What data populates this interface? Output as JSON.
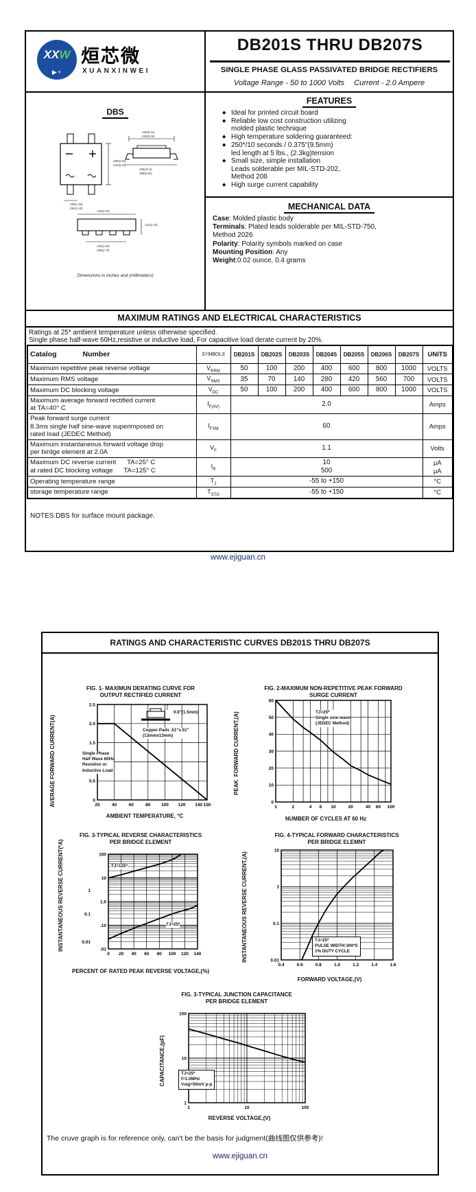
{
  "colors": {
    "brand_blue": "#1d4da1",
    "brand_green": "#58c75b",
    "footer_link": "#1b2a6b",
    "ink": "#000000"
  },
  "page1": {
    "logo": {
      "mark1": "XX",
      "mark2": "W",
      "diode": "▶+",
      "cn": "烜芯微",
      "en": "XUANXINWEI"
    },
    "title": "DB201S THRU DB207S",
    "subtitle": "SINGLE PHASE GLASS PASSIVATED BRIDGE RECTIFIERS",
    "voltage_range": "Voltage Range - 50 to 1000 Volts",
    "current": "Current - 2.0 Ampere",
    "package_label": "DBS",
    "dims_note": "Dimensions in inches and (millimeters)",
    "package_dims": [
      ".256(6.50)",
      ".244(6.20)",
      ".059(1.50)",
      ".051(1.30)",
      ".335(8.51)",
      ".325(8.26)",
      ".408(10.4)",
      ".386(9.80)",
      ".130(3.30)",
      ".122(3.10)",
      ".193(4.90)",
      ".185(4.70)"
    ],
    "features": {
      "title": "FEATURES",
      "bullet": "◆",
      "items": [
        "Ideal for printed circuit board",
        "Reliable low cost construction utilizing\nmolded plastic technique",
        "High temperature soldering guaranteed:",
        "250*/10 seconds / 0.375\"(9.5mm)\nled length at 5 lbs., (2.3kg)tension",
        "Small size, simple installation\nLeads solderable per MIL-STD-202,\nMethod 208",
        "High surge current capability"
      ]
    },
    "mech": {
      "title": "MECHANICAL DATA",
      "lines": [
        {
          "k": "Case",
          "v": ": Molded plastic body"
        },
        {
          "k": "Terminals",
          "v": ": Plated leads solderable per MIL-STD-750,\n Method 2026"
        },
        {
          "k": "Polarity",
          "v": ": Polarity symbols marked on case"
        },
        {
          "k": "Mounting Position",
          "v": ": Any"
        },
        {
          "k": "Weight",
          "v": ":0.02 ounce, 0.4 grams"
        }
      ]
    },
    "ratings": {
      "banner": "MAXIMUM RATINGS AND ELECTRICAL CHARACTERISTICS",
      "note1": "Ratings at 25* ambient temperature unless otherwise specified.",
      "note2": "Single phase half-wave 60Hz,resistive or inductive load, For capacitive load derate current by 20%.",
      "table": {
        "catalog_label": "Catalog",
        "number_label": "Number",
        "symbols_label": "SYMBOLS",
        "devices": [
          "DB201S",
          "DB202S",
          "DB203S",
          "DB204S",
          "DB205S",
          "DB206S",
          "DB207S"
        ],
        "units_label": "UNITS",
        "rows": [
          {
            "param": "Maximum repetitive peak reverse voltage",
            "sym": [
              "V",
              "RRM"
            ],
            "values": [
              "50",
              "100",
              "200",
              "400",
              "600",
              "800",
              "1000"
            ],
            "unit": "VOLTS"
          },
          {
            "param": "Maximum RMS voltage",
            "sym": [
              "V",
              "RMS"
            ],
            "values": [
              "35",
              "70",
              "140",
              "280",
              "420",
              "560",
              "700"
            ],
            "unit": "VOLTS"
          },
          {
            "param": "Maximum DC blocking voltage",
            "sym": [
              "V",
              "DC"
            ],
            "values": [
              "50",
              "100",
              "200",
              "400",
              "600",
              "800",
              "1000"
            ],
            "unit": "VOLTS"
          },
          {
            "param": "Maximum average forward rectified current\nat TA=40° C",
            "sym": [
              "I",
              "F(AV)"
            ],
            "span": "2.0",
            "unit": "Amps"
          },
          {
            "param": "Peak forward surge current\n8.3ms single half sine-wave superimposed on\nrated load (JEDEC Method)",
            "sym": [
              "I",
              "FSM"
            ],
            "span": "60",
            "unit": "Amps"
          },
          {
            "param": "Maximum instantaneous forward voltage drop\nper birdge element at 2.0A",
            "sym": [
              "V",
              "F"
            ],
            "span": "1.1",
            "unit": "Volts"
          },
          {
            "param": "Maximum DC reverse current      TA=25° C\nat rated DC blocking voltage      TA=125° C",
            "sym": [
              "I",
              "R"
            ],
            "stack": [
              "10",
              "500"
            ],
            "unit_stack": [
              "μA",
              "μA"
            ]
          },
          {
            "param": "Operating temperature range",
            "sym": [
              "T",
              "J"
            ],
            "span": "-55 to +150",
            "unit": "°C"
          },
          {
            "param": "storage temperature range",
            "sym": [
              "T",
              "STG"
            ],
            "span": "-55 to +150",
            "unit": "°C"
          }
        ]
      },
      "notes": "NOTES:DBS for surface mount package."
    },
    "footer": "www.ejiguan.cn"
  },
  "page2": {
    "banner": "RATINGS AND CHARACTERISTIC CURVES DB201S THRU DB207S",
    "reference_note": "The cruve graph is for reference only, can't be the basis for judgment(曲线图仅供参考)!",
    "footer": "www.ejiguan.cn"
  },
  "chart_data": [
    {
      "type": "line",
      "title": "FIG. 1- MAXIMUN DERATING CURVE FOR\nOUTPUT RECTIFIED CURRENT",
      "xlabel": "AMBIENT TEMPERATURE, °C",
      "ylabel": "AVERAGE FORWARD CURRENT(A)",
      "x": {
        "scale": "linear",
        "min": 20,
        "max": 150,
        "ticks": [
          [
            20,
            "20"
          ],
          [
            40,
            "40"
          ],
          [
            60,
            "60"
          ],
          [
            80,
            "80"
          ],
          [
            100,
            "100"
          ],
          [
            120,
            "120"
          ],
          [
            140,
            "140"
          ],
          [
            150,
            "150"
          ]
        ],
        "grid": [
          40,
          60,
          80,
          100,
          120,
          140
        ]
      },
      "y": {
        "scale": "linear",
        "min": 0,
        "max": 2.5,
        "ticks": [
          [
            0,
            "0"
          ],
          [
            0.5,
            "0.5"
          ],
          [
            1,
            "1.0"
          ],
          [
            1.5,
            "1.5"
          ],
          [
            2,
            "2.0"
          ],
          [
            2.5,
            "2.5"
          ]
        ],
        "grid": [
          0.5,
          1,
          1.5,
          2
        ]
      },
      "series": [
        {
          "name": "derating-curve",
          "points": [
            [
              20,
              2
            ],
            [
              40,
              2
            ],
            [
              150,
              0
            ]
          ]
        }
      ],
      "annotations": [
        {
          "text": "0.6\"(1.5mm)"
        },
        {
          "text": "Copper Pads .51\"x.51\"\n(13mmx13mm)"
        },
        {
          "text": "Single Phase\nHalf Wave 60Hz\nResistive or\nInductive Load"
        }
      ]
    },
    {
      "type": "line",
      "title": "FIG. 2-MAXIMUM NON-REPETITIVE PEAK FORWARD\nSURGE CURRENT",
      "xlabel": "NUMBER OF CYCLES AT 60 Hz",
      "ylabel": "PEAK  FORWARD CURRENT,(A)",
      "x": {
        "scale": "log",
        "min": 1,
        "max": 100,
        "ticks": [
          [
            1,
            "1"
          ],
          [
            2,
            "2"
          ],
          [
            4,
            "4"
          ],
          [
            6,
            "6"
          ],
          [
            10,
            "10"
          ],
          [
            20,
            "20"
          ],
          [
            40,
            "40"
          ],
          [
            60,
            "60"
          ],
          [
            100,
            "100"
          ]
        ],
        "grid": [
          2,
          3,
          4,
          6,
          8,
          10,
          20,
          30,
          40,
          60,
          80
        ]
      },
      "y": {
        "scale": "linear",
        "min": 0,
        "max": 60,
        "ticks": [
          [
            0,
            "0"
          ],
          [
            10,
            "10"
          ],
          [
            20,
            "20"
          ],
          [
            30,
            "30"
          ],
          [
            40,
            "40"
          ],
          [
            50,
            "50"
          ],
          [
            60,
            "60"
          ]
        ],
        "grid": [
          10,
          20,
          30,
          40,
          50
        ]
      },
      "series": [
        {
          "name": "surge-current",
          "points": [
            [
              1,
              60
            ],
            [
              1.5,
              53.5
            ],
            [
              2,
              49
            ],
            [
              3,
              44
            ],
            [
              4,
              41
            ],
            [
              6,
              36.5
            ],
            [
              8,
              32.5
            ],
            [
              10,
              29.5
            ],
            [
              15,
              25
            ],
            [
              20,
              21.5
            ],
            [
              30,
              18.5
            ],
            [
              40,
              16
            ],
            [
              60,
              13.5
            ],
            [
              80,
              11.8
            ],
            [
              100,
              10.5
            ]
          ]
        }
      ],
      "annotations": [
        {
          "text": "TJ=25*\nSingle sine-wave\n(JEDEC Method)"
        }
      ]
    },
    {
      "type": "line",
      "title": "FIG. 3-TYPICAL REVERSE CHARACTERISTICS\nPER BRIDGE ELEMENT",
      "xlabel": "PERCENT OF RATED PEAK REVERSE VOLTAGE,(%)",
      "ylabel": "INSTANTANEOUS REVERSE CURRENT(*A)",
      "x": {
        "scale": "linear",
        "min": 0,
        "max": 140,
        "ticks": [
          [
            0,
            "0"
          ],
          [
            20,
            "20"
          ],
          [
            40,
            "40"
          ],
          [
            60,
            "60"
          ],
          [
            80,
            "80"
          ],
          [
            100,
            "100"
          ],
          [
            120,
            "120"
          ],
          [
            140,
            "140"
          ]
        ],
        "grid": [
          20,
          40,
          60,
          80,
          100,
          120
        ]
      },
      "y": {
        "scale": "log",
        "min": 0.01,
        "max": 100,
        "logminor": true,
        "ticks": [
          [
            100,
            "100"
          ],
          [
            10,
            "10"
          ],
          [
            1,
            "1.0"
          ],
          [
            0.1,
            ".10"
          ],
          [
            0.01,
            ".01"
          ]
        ],
        "outer": [
          [
            3,
            "1"
          ],
          [
            0.3,
            "0.1"
          ],
          [
            0.02,
            "0.01"
          ]
        ]
      },
      "series": [
        {
          "name": "tj-125-curve",
          "label": "TJ=125*",
          "points": [
            [
              0,
              10
            ],
            [
              20,
              13.5
            ],
            [
              40,
              19
            ],
            [
              60,
              27
            ],
            [
              80,
              38
            ],
            [
              95,
              52
            ],
            [
              105,
              68
            ],
            [
              112,
              90
            ],
            [
              114,
              100
            ]
          ]
        },
        {
          "name": "tj-25-curve",
          "label": "TJ=25*",
          "points": [
            [
              0,
              0.026
            ],
            [
              20,
              0.045
            ],
            [
              40,
              0.075
            ],
            [
              60,
              0.12
            ],
            [
              80,
              0.19
            ],
            [
              100,
              0.3
            ],
            [
              115,
              0.4
            ],
            [
              125,
              0.47
            ],
            [
              132,
              0.55
            ],
            [
              138,
              0.66
            ],
            [
              140,
              0.7
            ]
          ]
        }
      ],
      "annotations": []
    },
    {
      "type": "line",
      "title": "FIG. 4-TYPICAL FORWARD CHARACTERISTICS\nPER BRIDGE ELEMNT",
      "xlabel": "FORWARD VOLTAGE,(V)",
      "ylabel": "INSTANTANEOUS REVERSE CURRENT,(A)",
      "x": {
        "scale": "linear",
        "min": 0.4,
        "max": 1.6,
        "ticks": [
          [
            0.4,
            "0.4"
          ],
          [
            0.6,
            "0.6"
          ],
          [
            0.8,
            "0.8"
          ],
          [
            1.0,
            "1.0"
          ],
          [
            1.2,
            "1.2"
          ],
          [
            1.4,
            "1.4"
          ],
          [
            1.6,
            "1.6"
          ]
        ],
        "grid": [
          0.6,
          0.8,
          1.0,
          1.2,
          1.4
        ]
      },
      "y": {
        "scale": "log",
        "min": 0.01,
        "max": 10,
        "logminor": true,
        "ticks": [
          [
            10,
            "10"
          ],
          [
            1,
            "1"
          ],
          [
            0.1,
            "0.1"
          ],
          [
            0.01,
            "0.01"
          ]
        ]
      },
      "series": [
        {
          "name": "vf-curve",
          "points": [
            [
              0.62,
              0.01
            ],
            [
              0.68,
              0.022
            ],
            [
              0.74,
              0.05
            ],
            [
              0.8,
              0.1
            ],
            [
              0.86,
              0.19
            ],
            [
              0.92,
              0.33
            ],
            [
              1.0,
              0.63
            ],
            [
              1.08,
              1.05
            ],
            [
              1.16,
              1.7
            ],
            [
              1.24,
              2.6
            ],
            [
              1.32,
              4.0
            ],
            [
              1.4,
              6.2
            ],
            [
              1.47,
              9.0
            ],
            [
              1.5,
              10
            ]
          ]
        }
      ],
      "annotations": [
        {
          "text": "TJ=25*\nPULSE WIDTH:300*S\n1% DUTY CYCLE"
        }
      ]
    },
    {
      "type": "line",
      "title": "FIG. 3-TYPICAL JUNCTION CAPACITANCE\nPER BRIDGE ELEMENT",
      "xlabel": "REVERSE VOLTAGE,(V)",
      "ylabel": "CAPACITANCE,(pF)",
      "x": {
        "scale": "log",
        "min": 1,
        "max": 100,
        "logminor": true,
        "ticks": [
          [
            1,
            "1"
          ],
          [
            10,
            "10"
          ],
          [
            100,
            "100"
          ]
        ]
      },
      "y": {
        "scale": "log",
        "min": 1,
        "max": 100,
        "logminor": true,
        "ticks": [
          [
            100,
            "100"
          ],
          [
            10,
            "10"
          ],
          [
            1,
            "1"
          ]
        ]
      },
      "series": [
        {
          "name": "capacitance-curve",
          "points": [
            [
              1,
              45
            ],
            [
              2,
              35
            ],
            [
              4,
              27
            ],
            [
              7,
              22
            ],
            [
              10,
              19
            ],
            [
              20,
              14.5
            ],
            [
              40,
              11
            ],
            [
              70,
              9
            ],
            [
              100,
              8
            ]
          ]
        }
      ],
      "annotations": [
        {
          "text": "TJ=25*\nf=1.0MHz\nVsig=50mV p-p"
        }
      ]
    }
  ]
}
